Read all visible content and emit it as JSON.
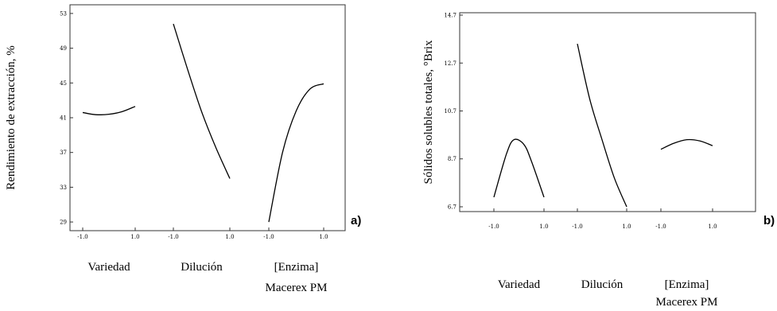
{
  "chart_data": [
    {
      "type": "line",
      "panel_label": "a)",
      "ylabel": "Rendimiento de extracción, %",
      "ylim": [
        28,
        54
      ],
      "yticks": [
        "29",
        "33",
        "37",
        "41",
        "45",
        "49",
        "53"
      ],
      "factors": [
        {
          "name": "Variedad",
          "xticks": [
            "-1.0",
            "1.0"
          ],
          "x": [
            -1.0,
            -0.5,
            0.0,
            0.5,
            1.0
          ],
          "y": [
            41.6,
            41.35,
            41.4,
            41.7,
            42.3
          ]
        },
        {
          "name": "Dilución",
          "xticks": [
            "-1.0",
            "1.0"
          ],
          "x": [
            -1.0,
            -0.5,
            0.0,
            0.5,
            1.0
          ],
          "y": [
            51.8,
            46.6,
            41.7,
            37.6,
            34.0
          ]
        },
        {
          "name": "[Enzima]",
          "name_line2": "Macerex PM",
          "xticks": [
            "-1.0",
            "1.0"
          ],
          "x": [
            -1.0,
            -0.5,
            0.0,
            0.5,
            1.0
          ],
          "y": [
            29.0,
            37.0,
            41.8,
            44.3,
            44.9
          ]
        }
      ]
    },
    {
      "type": "line",
      "panel_label": "b)",
      "ylabel": "Sólidos solubles totales, °Brix",
      "ylim": [
        6.5,
        14.8
      ],
      "yticks": [
        "6.7",
        "8.7",
        "10.7",
        "12.7",
        "14.7"
      ],
      "factors": [
        {
          "name": "Variedad",
          "xticks": [
            "-1.0",
            "1.0"
          ],
          "x": [
            -1.0,
            -0.5,
            -0.2,
            0.2,
            0.5,
            1.0
          ],
          "y": [
            7.1,
            8.9,
            9.5,
            9.3,
            8.6,
            7.1
          ]
        },
        {
          "name": "Dilución",
          "xticks": [
            "-1.0",
            "1.0"
          ],
          "x": [
            -1.0,
            -0.5,
            0.0,
            0.5,
            1.0
          ],
          "y": [
            13.5,
            11.2,
            9.5,
            7.9,
            6.7
          ]
        },
        {
          "name": "[Enzima]",
          "name_line2": "Macerex PM",
          "xticks": [
            "-1.0",
            "1.0"
          ],
          "x": [
            -1.0,
            -0.5,
            0.0,
            0.5,
            1.0
          ],
          "y": [
            9.1,
            9.35,
            9.5,
            9.45,
            9.25
          ]
        }
      ]
    }
  ]
}
